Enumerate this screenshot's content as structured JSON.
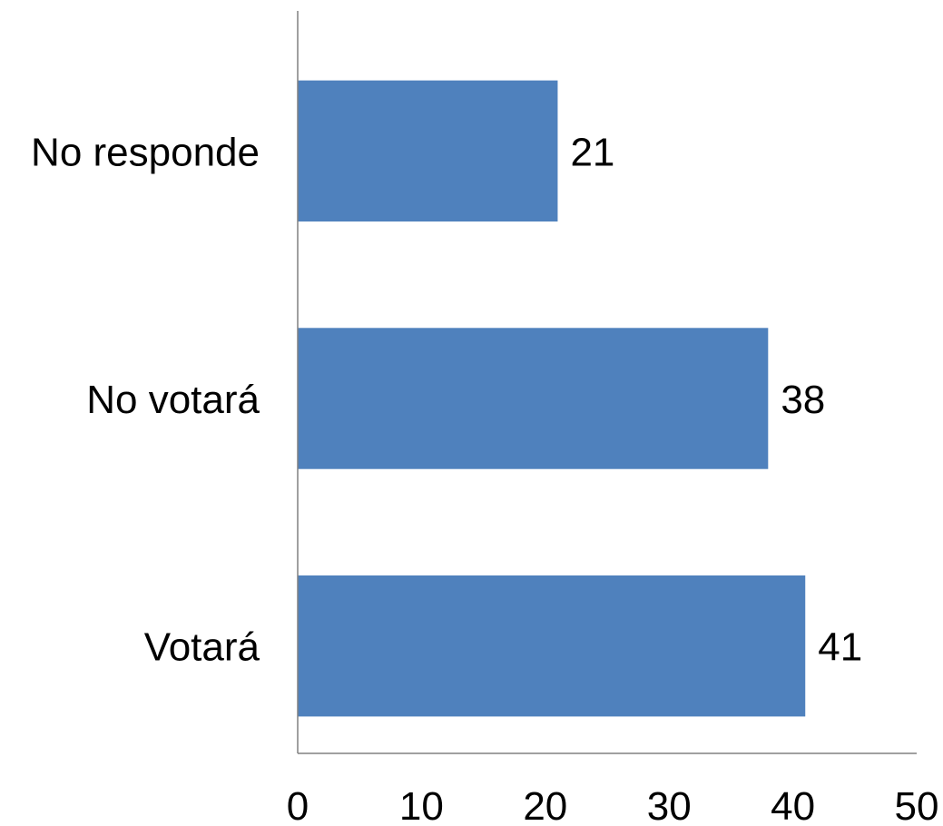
{
  "chart_data": {
    "type": "bar",
    "orientation": "horizontal",
    "categories": [
      "No responde",
      "No votará",
      "Votará"
    ],
    "values": [
      21,
      38,
      41
    ],
    "data_labels": [
      "21",
      "38",
      "41"
    ],
    "xlim": [
      0,
      50
    ],
    "xticks": [
      0,
      10,
      20,
      30,
      40,
      50
    ],
    "xtick_labels": [
      "0",
      "10",
      "20",
      "30",
      "40",
      "50"
    ],
    "grid": false,
    "legend": "none",
    "bar_color": "#4F81BD"
  }
}
